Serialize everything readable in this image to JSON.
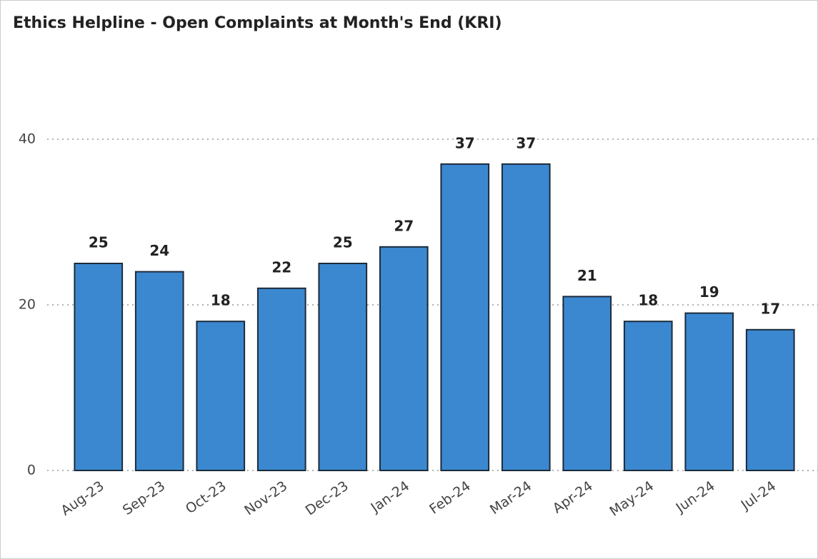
{
  "chart_data": {
    "type": "bar",
    "title": "Ethics Helpline - Open Complaints at Month's End (KRI)",
    "categories": [
      "Aug-23",
      "Sep-23",
      "Oct-23",
      "Nov-23",
      "Dec-23",
      "Jan-24",
      "Feb-24",
      "Mar-24",
      "Apr-24",
      "May-24",
      "Jun-24",
      "Jul-24"
    ],
    "values": [
      25,
      24,
      18,
      22,
      25,
      27,
      37,
      37,
      21,
      18,
      19,
      17
    ],
    "color": "#3b88d0",
    "ylim": [
      0,
      40
    ],
    "yticks": [
      0,
      20,
      40
    ],
    "grid": true
  }
}
